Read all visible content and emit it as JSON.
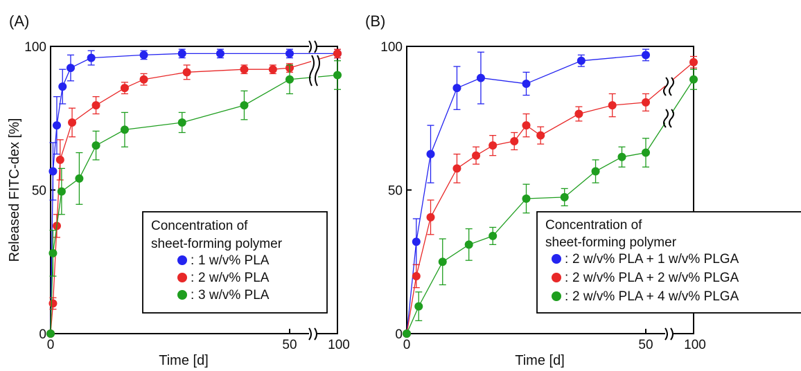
{
  "chart_data": [
    {
      "type": "line",
      "panel_label": "(A)",
      "xlabel": "Time [d]",
      "ylabel": "Released FITC-dex [%]",
      "xlim": [
        0,
        55
      ],
      "x_break_tick": 100,
      "ylim": [
        0,
        100
      ],
      "xticks": [
        0,
        50
      ],
      "yticks": [
        0,
        50,
        100
      ],
      "legend": {
        "title": [
          "Concentration of",
          "sheet-forming polymer"
        ],
        "position": "bottom-right"
      },
      "grid": false,
      "series": [
        {
          "name": "1 w/v% PLA",
          "color": "#2424f0",
          "points": [
            {
              "x": 0,
              "y": 0,
              "err": 0
            },
            {
              "x": 0.5,
              "y": 56.5,
              "err": 10
            },
            {
              "x": 1.3,
              "y": 72.5,
              "err": 10
            },
            {
              "x": 2.5,
              "y": 86,
              "err": 6
            },
            {
              "x": 4.2,
              "y": 92.5,
              "err": 4.5
            },
            {
              "x": 8.5,
              "y": 96,
              "err": 2.5
            },
            {
              "x": 19.5,
              "y": 97,
              "err": 1.5
            },
            {
              "x": 27.5,
              "y": 97.5,
              "err": 1.5
            },
            {
              "x": 35.5,
              "y": 97.5,
              "err": 1.5
            },
            {
              "x": 50,
              "y": 97.5,
              "err": 1.5
            },
            {
              "x": "100",
              "y": 97.5,
              "err": 1.5
            }
          ]
        },
        {
          "name": "2 w/v% PLA",
          "color": "#e82828",
          "points": [
            {
              "x": 0,
              "y": 0,
              "err": 0
            },
            {
              "x": 0.5,
              "y": 10.5,
              "err": 2
            },
            {
              "x": 1.3,
              "y": 37.5,
              "err": 4
            },
            {
              "x": 2,
              "y": 60.5,
              "err": 7
            },
            {
              "x": 4.5,
              "y": 73.5,
              "err": 5
            },
            {
              "x": 9.5,
              "y": 79.5,
              "err": 3
            },
            {
              "x": 15.5,
              "y": 85.5,
              "err": 2
            },
            {
              "x": 19.5,
              "y": 88.5,
              "err": 2
            },
            {
              "x": 28.5,
              "y": 91,
              "err": 2.5
            },
            {
              "x": 40.5,
              "y": 92,
              "err": 1.5
            },
            {
              "x": 46.5,
              "y": 92,
              "err": 1.5
            },
            {
              "x": 50,
              "y": 92.5,
              "err": 1.5
            },
            {
              "x": "100",
              "y": 97.5,
              "err": 1.5
            }
          ]
        },
        {
          "name": "3 w/v% PLA",
          "color": "#1f9e1f",
          "points": [
            {
              "x": 0,
              "y": 0,
              "err": 0
            },
            {
              "x": 0.5,
              "y": 28,
              "err": 8
            },
            {
              "x": 2.3,
              "y": 49.5,
              "err": 8
            },
            {
              "x": 6,
              "y": 54,
              "err": 9
            },
            {
              "x": 9.5,
              "y": 65.5,
              "err": 5
            },
            {
              "x": 15.5,
              "y": 71,
              "err": 6
            },
            {
              "x": 27.5,
              "y": 73.5,
              "err": 3.5
            },
            {
              "x": 40.5,
              "y": 79.5,
              "err": 5
            },
            {
              "x": 50,
              "y": 88.5,
              "err": 5
            },
            {
              "x": "100",
              "y": 90,
              "err": 5
            }
          ]
        }
      ]
    },
    {
      "type": "line",
      "panel_label": "(B)",
      "xlabel": "Time [d]",
      "ylabel": "",
      "xlim": [
        0,
        55
      ],
      "x_break_tick": 100,
      "ylim": [
        0,
        100
      ],
      "xticks": [
        0,
        50
      ],
      "yticks": [
        0,
        50,
        100
      ],
      "legend": {
        "title": [
          "Concentration of",
          "sheet-forming polymer"
        ],
        "position": "bottom-right"
      },
      "grid": false,
      "series": [
        {
          "name": "2 w/v% PLA + 1 w/v% PLGA",
          "color": "#2424f0",
          "points": [
            {
              "x": 0,
              "y": 0,
              "err": 0
            },
            {
              "x": 2,
              "y": 32,
              "err": 8
            },
            {
              "x": 5,
              "y": 62.5,
              "err": 10
            },
            {
              "x": 10.5,
              "y": 85.5,
              "err": 7.5
            },
            {
              "x": 15.5,
              "y": 89,
              "err": 9
            },
            {
              "x": 25,
              "y": 87,
              "err": 4
            },
            {
              "x": 36.5,
              "y": 95,
              "err": 2
            },
            {
              "x": 50,
              "y": 97,
              "err": 2
            }
          ]
        },
        {
          "name": "2 w/v% PLA + 2 w/v% PLGA",
          "color": "#e82828",
          "points": [
            {
              "x": 0,
              "y": 0,
              "err": 0
            },
            {
              "x": 2,
              "y": 20,
              "err": 4
            },
            {
              "x": 5,
              "y": 40.5,
              "err": 6
            },
            {
              "x": 10.5,
              "y": 57.5,
              "err": 5
            },
            {
              "x": 14.5,
              "y": 62,
              "err": 3
            },
            {
              "x": 18,
              "y": 65.5,
              "err": 3.5
            },
            {
              "x": 22.5,
              "y": 67,
              "err": 3
            },
            {
              "x": 25,
              "y": 72.5,
              "err": 4
            },
            {
              "x": 28,
              "y": 69,
              "err": 3
            },
            {
              "x": 36,
              "y": 76.5,
              "err": 2.5
            },
            {
              "x": 43,
              "y": 79.5,
              "err": 4
            },
            {
              "x": 50,
              "y": 80.5,
              "err": 3
            },
            {
              "x": "100",
              "y": 94.5,
              "err": 2
            }
          ]
        },
        {
          "name": "2 w/v% PLA + 4 w/v% PLGA",
          "color": "#1f9e1f",
          "points": [
            {
              "x": 0,
              "y": 0,
              "err": 0
            },
            {
              "x": 2.5,
              "y": 9.5,
              "err": 5
            },
            {
              "x": 7.5,
              "y": 25,
              "err": 8
            },
            {
              "x": 13,
              "y": 31,
              "err": 5.5
            },
            {
              "x": 18,
              "y": 34,
              "err": 3
            },
            {
              "x": 25,
              "y": 47,
              "err": 5
            },
            {
              "x": 33,
              "y": 47.5,
              "err": 3
            },
            {
              "x": 39.5,
              "y": 56.5,
              "err": 4
            },
            {
              "x": 45,
              "y": 61.5,
              "err": 3.5
            },
            {
              "x": 50,
              "y": 63,
              "err": 5
            },
            {
              "x": "100",
              "y": 88.5,
              "err": 3.5
            }
          ]
        }
      ]
    }
  ]
}
